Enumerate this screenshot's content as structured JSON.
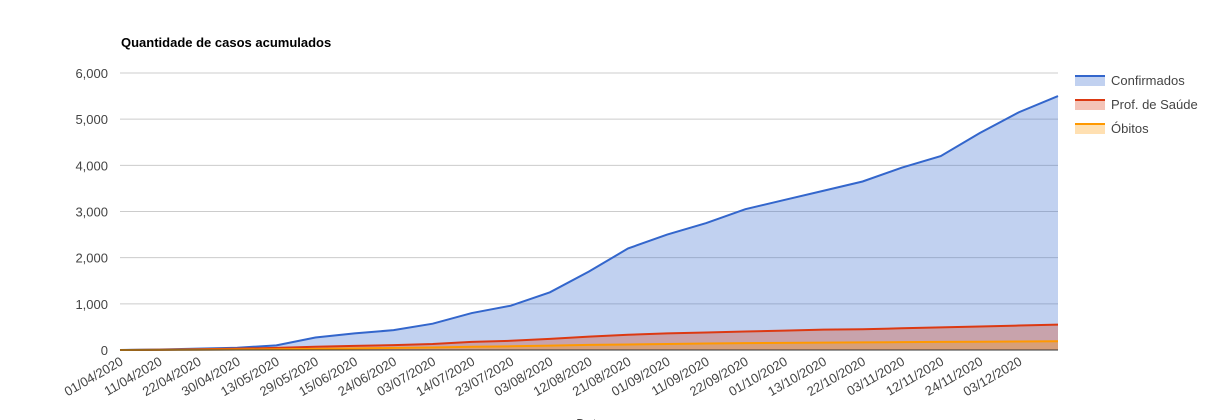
{
  "chart_data": {
    "type": "area",
    "title": "Quantidade de casos acumulados",
    "x_label": "Data",
    "categories": [
      "01/04/2020",
      "11/04/2020",
      "22/04/2020",
      "30/04/2020",
      "13/05/2020",
      "29/05/2020",
      "15/06/2020",
      "24/06/2020",
      "03/07/2020",
      "14/07/2020",
      "23/07/2020",
      "03/08/2020",
      "12/08/2020",
      "21/08/2020",
      "01/09/2020",
      "11/09/2020",
      "22/09/2020",
      "01/10/2020",
      "13/10/2020",
      "22/10/2020",
      "03/11/2020",
      "12/11/2020",
      "24/11/2020",
      "03/12/2020",
      null
    ],
    "series": [
      {
        "name": "Confirmados",
        "color": "#3366cc",
        "values": [
          0,
          10,
          30,
          50,
          100,
          270,
          360,
          430,
          570,
          800,
          960,
          1250,
          1700,
          2200,
          2500,
          2750,
          3050,
          3250,
          3450,
          3650,
          3950,
          4200,
          4700,
          5150,
          5500
        ]
      },
      {
        "name": "Prof. de Saúde",
        "color": "#dc3912",
        "values": [
          0,
          5,
          15,
          30,
          45,
          70,
          90,
          105,
          130,
          175,
          200,
          240,
          290,
          330,
          360,
          380,
          400,
          420,
          440,
          450,
          470,
          490,
          510,
          530,
          550
        ]
      },
      {
        "name": "Óbitos",
        "color": "#ff9900",
        "values": [
          0,
          2,
          5,
          10,
          15,
          25,
          35,
          45,
          55,
          70,
          80,
          95,
          110,
          120,
          130,
          140,
          150,
          155,
          160,
          165,
          170,
          175,
          180,
          185,
          190
        ]
      }
    ],
    "ylim": [
      0,
      6000
    ],
    "yticks": [
      0,
      {
        "value": 1000,
        "label": "1,000"
      },
      {
        "value": 2000,
        "label": "2,000"
      },
      {
        "value": 3000,
        "label": "3,000"
      },
      {
        "value": 4000,
        "label": "4,000"
      },
      {
        "value": 5000,
        "label": "5,000"
      },
      {
        "value": 6000,
        "label": "6,000"
      }
    ],
    "grid": true,
    "legend": "right"
  }
}
